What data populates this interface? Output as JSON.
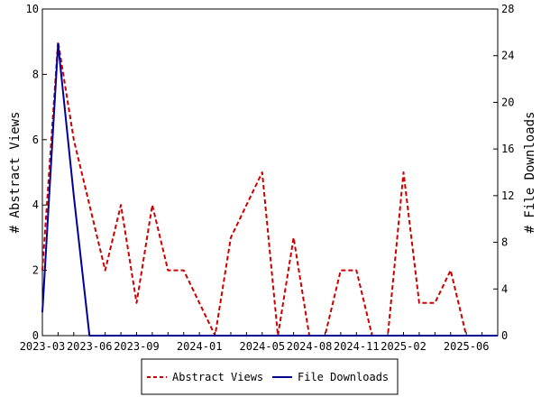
{
  "chart_data": {
    "type": "line",
    "x": [
      "2023-03",
      "2023-04",
      "2023-05",
      "2023-06",
      "2023-07",
      "2023-08",
      "2023-09",
      "2023-10",
      "2023-11",
      "2023-12",
      "2024-01",
      "2024-02",
      "2024-03",
      "2024-04",
      "2024-05",
      "2024-06",
      "2024-07",
      "2024-08",
      "2024-09",
      "2024-10",
      "2024-11",
      "2024-12",
      "2025-01",
      "2025-02",
      "2025-03",
      "2025-04",
      "2025-05",
      "2025-06",
      "2025-07",
      "2025-08"
    ],
    "x_ticks": [
      "2023-03",
      "2023-06",
      "2023-09",
      "2024-01",
      "2024-05",
      "2024-08",
      "2024-11",
      "2025-02",
      "2025-06"
    ],
    "series": [
      {
        "name": "Abstract Views",
        "axis": "left",
        "color": "#cc0000",
        "style": "dashed",
        "values": [
          2,
          9,
          6,
          4,
          2,
          4,
          1,
          4,
          2,
          2,
          1,
          0,
          3,
          4,
          5,
          0,
          3,
          0,
          0,
          2,
          2,
          0,
          0,
          5,
          1,
          1,
          2,
          0,
          0,
          0
        ]
      },
      {
        "name": "File Downloads",
        "axis": "right",
        "color": "#000099",
        "style": "solid",
        "values": [
          2,
          25,
          12,
          0,
          0,
          0,
          0,
          0,
          0,
          0,
          0,
          0,
          0,
          0,
          0,
          0,
          0,
          0,
          0,
          0,
          0,
          0,
          0,
          0,
          0,
          0,
          0,
          0,
          0,
          0
        ]
      }
    ],
    "ylabel": "# Abstract Views",
    "ylim": [
      0,
      10
    ],
    "yticks": [
      0,
      2,
      4,
      6,
      8,
      10
    ],
    "y2label": "# File Downloads",
    "y2lim": [
      0,
      28
    ],
    "y2ticks": [
      0,
      4,
      8,
      12,
      16,
      20,
      24,
      28
    ],
    "grid": false,
    "legend_position": "bottom"
  }
}
